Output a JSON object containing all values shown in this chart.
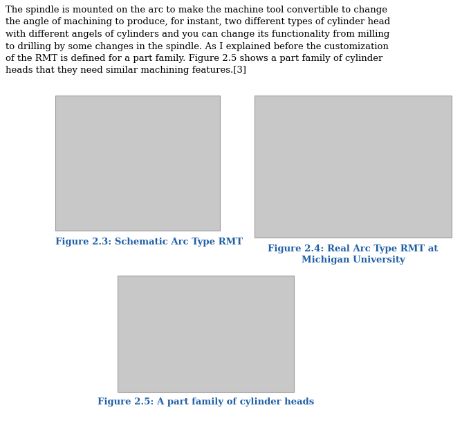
{
  "background_color": "#ffffff",
  "text_lines": [
    "The spindle is mounted on the arc to make the machine tool convertible to change",
    "the angle of machining to produce, for instant, two different types of cylinder head",
    "with different angels of cylinders and you can change its functionality from milling",
    "to drilling by some changes in the spindle. As I explained before the customization",
    "of the RMT is defined for a part family. Figure 2.5 shows a part family of cylinder",
    "heads that they need similar machining features.[3]"
  ],
  "text_color": "#000000",
  "text_fontsize": 9.5,
  "caption_color": "#1F5FA6",
  "caption_fontsize": 9.5,
  "fig23_caption": "Figure 2.3: Schematic Arc Type RMT",
  "fig24_caption_line1": "Figure 2.4: Real Arc Type RMT at",
  "fig24_caption_line2": "Michigan University",
  "fig25_caption": "Figure 2.5: A part family of cylinder heads",
  "img_facecolor": "#c8c8c8",
  "img_edgecolor": "#999999"
}
